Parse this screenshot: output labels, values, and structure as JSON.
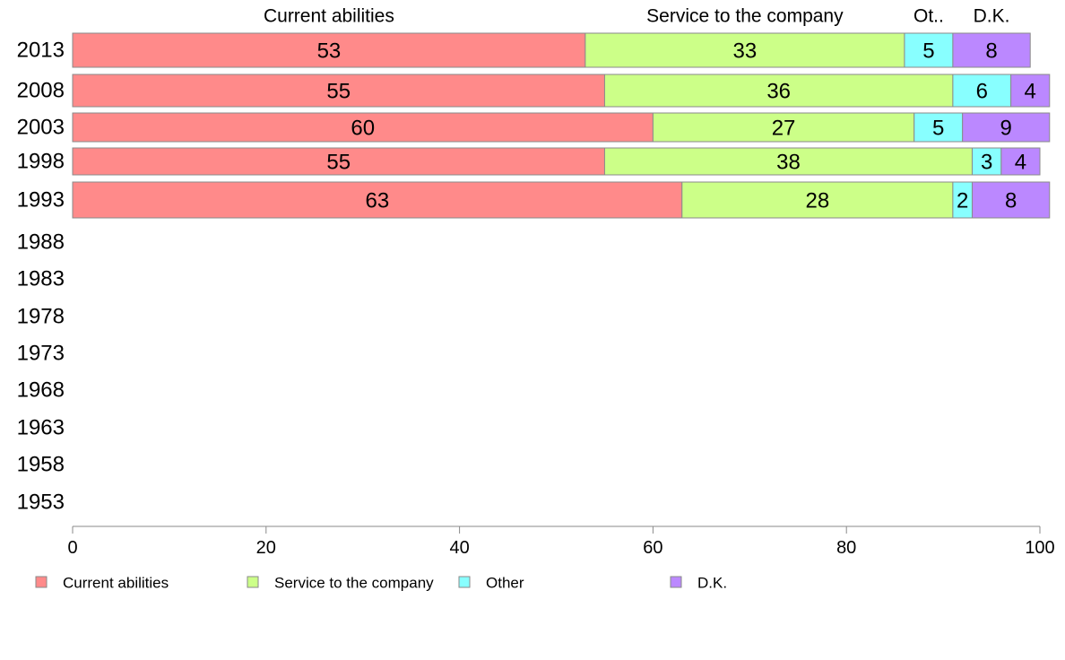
{
  "chart_data": {
    "type": "bar",
    "orientation": "horizontal",
    "stacked": true,
    "categories": [
      "2013",
      "2008",
      "2003",
      "1998",
      "1993",
      "1988",
      "1983",
      "1978",
      "1973",
      "1968",
      "1963",
      "1958",
      "1953"
    ],
    "series": [
      {
        "name": "Current abilities",
        "color": "#ff8a8a",
        "values": [
          53,
          55,
          60,
          55,
          63,
          null,
          null,
          null,
          null,
          null,
          null,
          null,
          null
        ]
      },
      {
        "name": "Service to the company",
        "color": "#ccff88",
        "values": [
          33,
          36,
          27,
          38,
          28,
          null,
          null,
          null,
          null,
          null,
          null,
          null,
          null
        ]
      },
      {
        "name": "Other",
        "color": "#88ffff",
        "values": [
          5,
          6,
          5,
          3,
          2,
          null,
          null,
          null,
          null,
          null,
          null,
          null,
          null
        ]
      },
      {
        "name": "D.K.",
        "color": "#bb88ff",
        "values": [
          8,
          4,
          9,
          4,
          8,
          null,
          null,
          null,
          null,
          null,
          null,
          null,
          null
        ]
      }
    ],
    "top_labels": [
      "Current abilities",
      "Service to the company",
      "Ot..",
      "D.K."
    ],
    "xlim": [
      0,
      100
    ],
    "xticks": [
      0,
      20,
      40,
      60,
      80,
      100
    ],
    "xlabel": "",
    "ylabel": "",
    "title": "",
    "grid": false,
    "legend_position": "bottom"
  }
}
